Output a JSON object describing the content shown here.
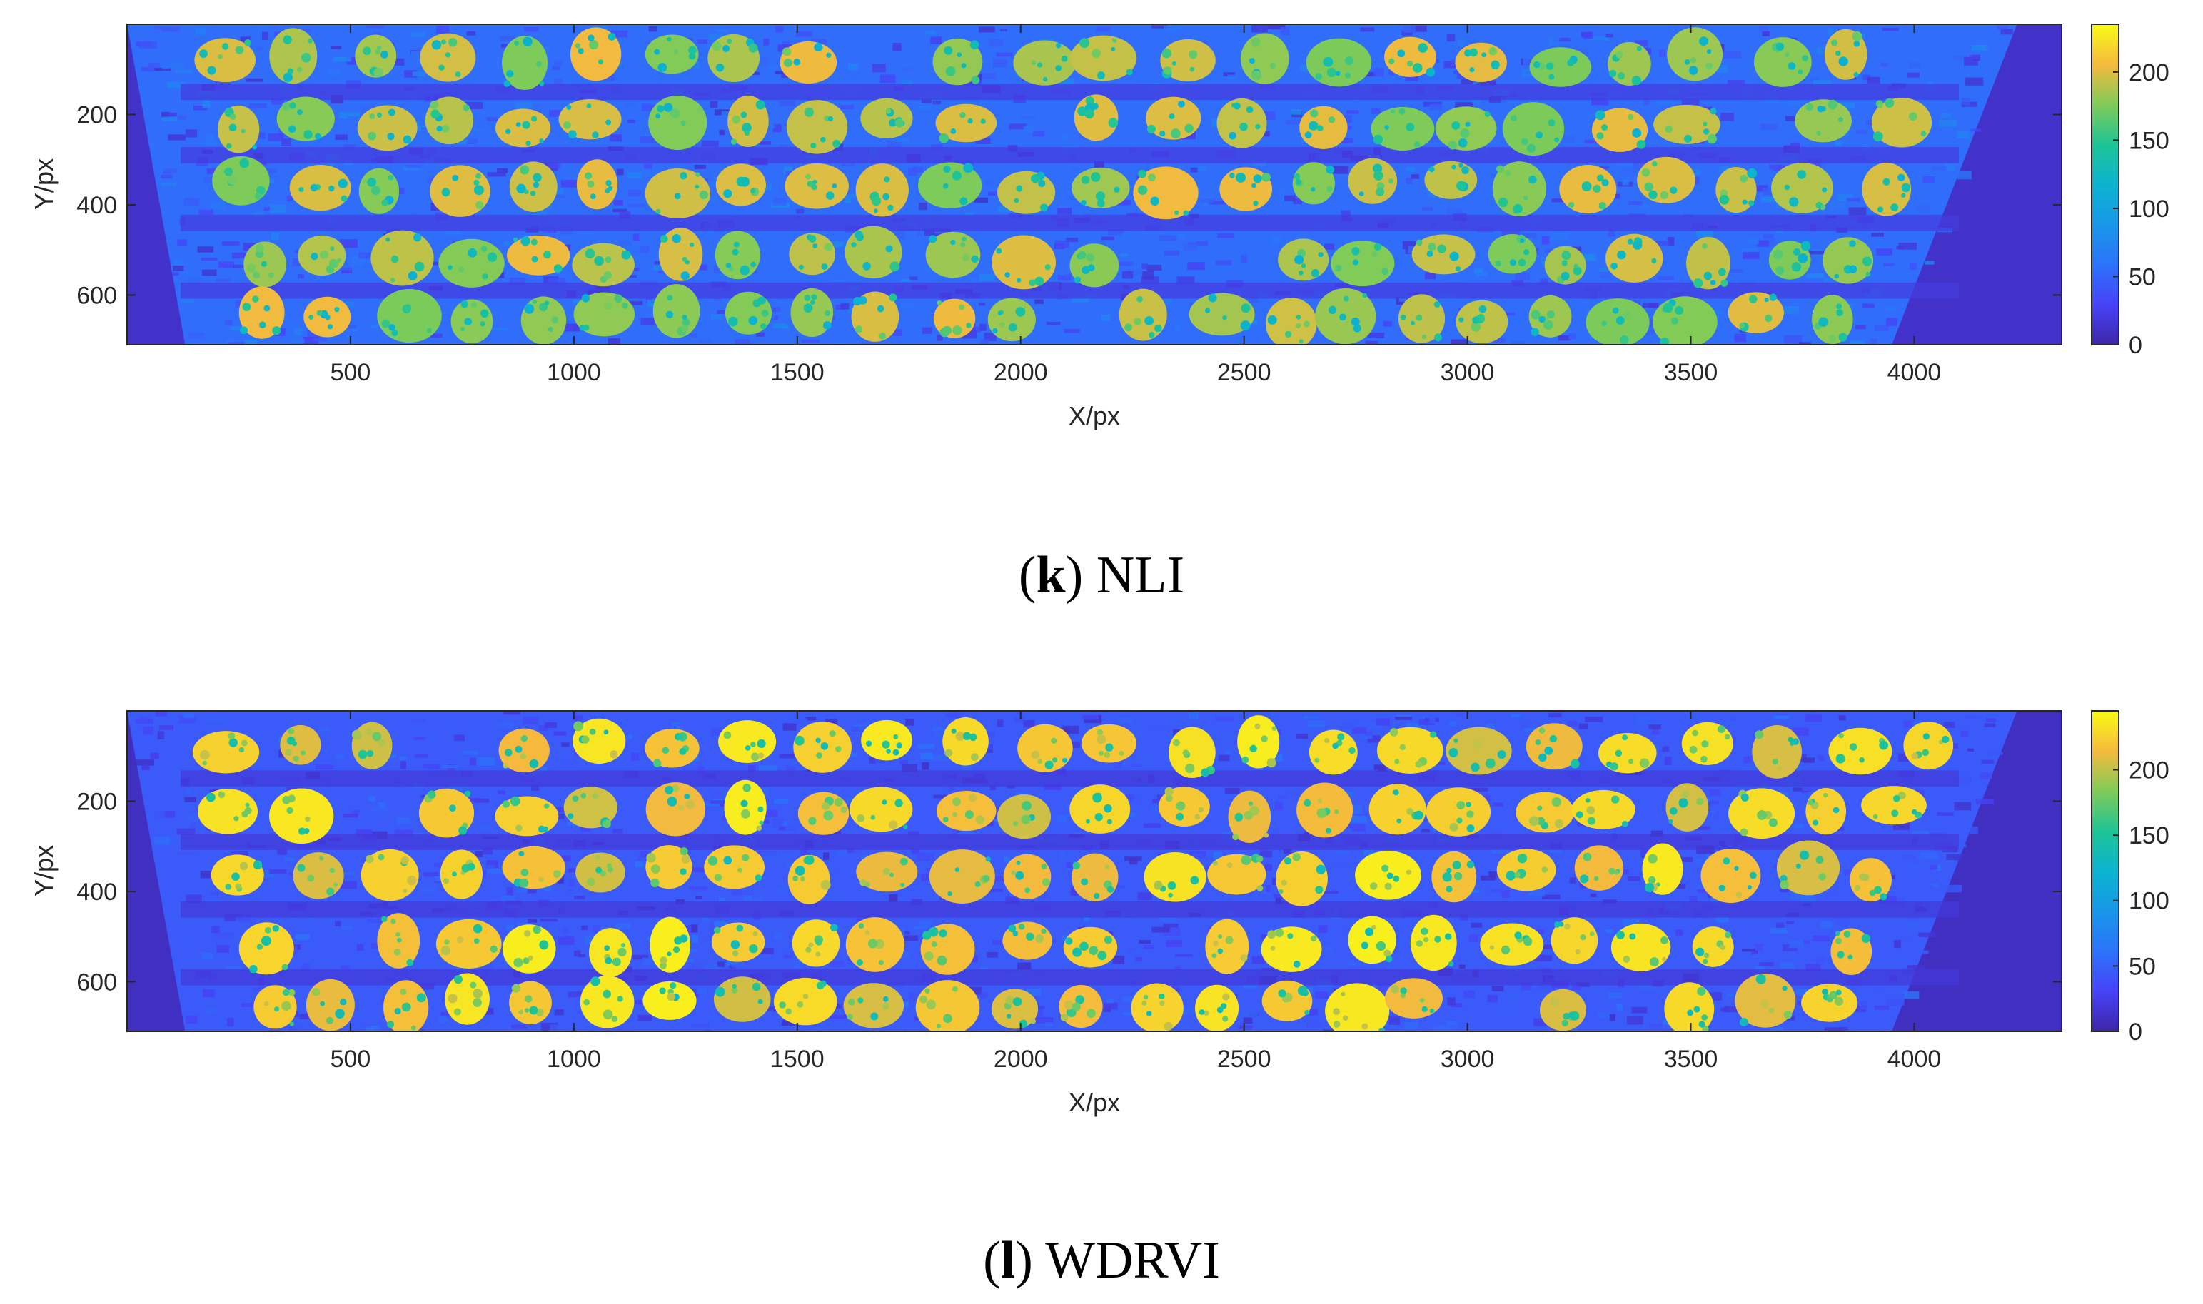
{
  "chart_data": [
    {
      "type": "heatmap",
      "panel_letter": "k",
      "panel_name": "NLI",
      "xlabel": "X/px",
      "ylabel": "Y/px",
      "xlim": [
        0,
        4330
      ],
      "ylim": [
        0,
        710
      ],
      "y_reversed": true,
      "x_ticks": [
        500,
        1000,
        1500,
        2000,
        2500,
        3000,
        3500,
        4000
      ],
      "y_ticks": [
        200,
        400,
        600
      ],
      "colorbar": {
        "range": [
          0,
          235
        ],
        "ticks": [
          0,
          50,
          100,
          150,
          200
        ],
        "colormap": "parula"
      },
      "background_level": 12,
      "plant_level": 205,
      "noise_level": 55,
      "field_rows_y": [
        80,
        220,
        360,
        520,
        650
      ],
      "plants_per_row": 24
    },
    {
      "type": "heatmap",
      "panel_letter": "l",
      "panel_name": "WDRVI",
      "xlabel": "X/px",
      "ylabel": "Y/px",
      "xlim": [
        0,
        4330
      ],
      "ylim": [
        0,
        710
      ],
      "y_reversed": true,
      "x_ticks": [
        500,
        1000,
        1500,
        2000,
        2500,
        3000,
        3500,
        4000
      ],
      "y_ticks": [
        200,
        400,
        600
      ],
      "colorbar": {
        "range": [
          0,
          245
        ],
        "ticks": [
          0,
          50,
          100,
          150,
          200
        ],
        "colormap": "parula"
      },
      "background_level": 10,
      "plant_level": 240,
      "noise_level": 45,
      "field_rows_y": [
        80,
        220,
        360,
        520,
        650
      ],
      "plants_per_row": 24
    }
  ]
}
